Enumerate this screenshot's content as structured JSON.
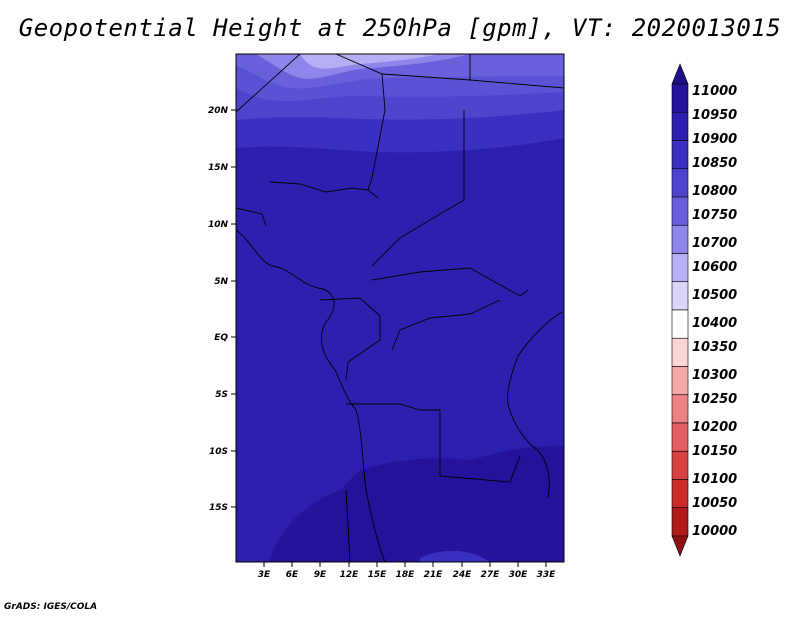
{
  "title": "Geopotential Height at 250hPa [gpm], VT: 2020013015",
  "credit": "GrADS: IGES/COLA",
  "map": {
    "lat_labels": [
      "20N",
      "15N",
      "10N",
      "5N",
      "EQ",
      "5S",
      "10S",
      "15S"
    ],
    "lon_labels": [
      "3E",
      "6E",
      "9E",
      "12E",
      "15E",
      "18E",
      "21E",
      "24E",
      "27E",
      "30E",
      "33E"
    ]
  },
  "colorbar": {
    "levels": [
      "11000",
      "10950",
      "10900",
      "10850",
      "10800",
      "10750",
      "10700",
      "10600",
      "10500",
      "10400",
      "10350",
      "10300",
      "10250",
      "10200",
      "10150",
      "10100",
      "10050",
      "10000"
    ],
    "colors": [
      "#1e0f86",
      "#25139b",
      "#2d1fae",
      "#3a2fc0",
      "#4c44cc",
      "#6a60dc",
      "#8f86eb",
      "#b6aff4",
      "#dad6fb",
      "#ffffff",
      "#fbd4d4",
      "#f4a8a8",
      "#ec8282",
      "#e46060",
      "#d94242",
      "#c92b2b",
      "#b01c1c",
      "#8f1010"
    ]
  }
}
